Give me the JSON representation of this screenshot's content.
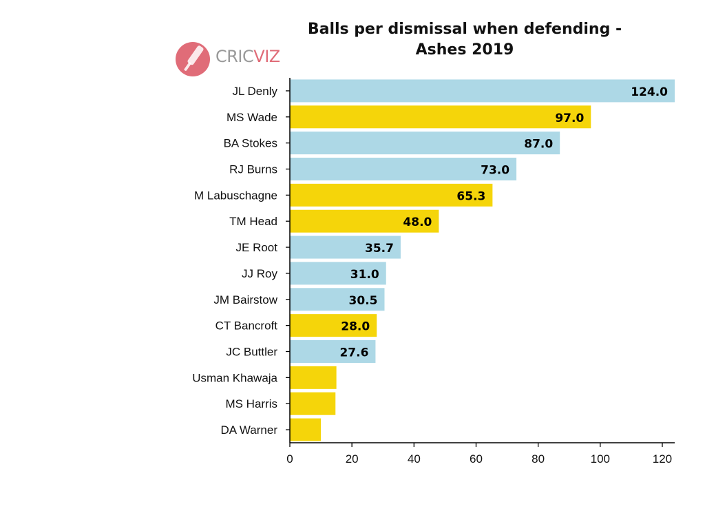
{
  "chart_data": {
    "type": "bar",
    "orientation": "horizontal",
    "title_line1": "Balls per dismissal when defending -",
    "title_line2": "Ashes 2019",
    "logo_text_1": "CRIC",
    "logo_text_2": "VIZ",
    "colors": {
      "England": "#add8e6",
      "Australia": "#f5d50a"
    },
    "categories": [
      "JL Denly",
      "MS Wade",
      "BA Stokes",
      "RJ Burns",
      "M Labuschagne",
      "TM Head",
      "JE Root",
      "JJ Roy",
      "JM Bairstow",
      "CT Bancroft",
      "JC Buttler",
      "Usman Khawaja",
      "MS Harris",
      "DA Warner"
    ],
    "values": [
      124.0,
      97.0,
      87.0,
      73.0,
      65.3,
      48.0,
      35.7,
      31.0,
      30.5,
      28.0,
      27.6,
      15.0,
      14.7,
      10.0
    ],
    "labels": [
      "124.0",
      "97.0",
      "87.0",
      "73.0",
      "65.3",
      "48.0",
      "35.7",
      "31.0",
      "30.5",
      "28.0",
      "27.6",
      "",
      "",
      ""
    ],
    "teams": [
      "England",
      "Australia",
      "England",
      "England",
      "Australia",
      "Australia",
      "England",
      "England",
      "England",
      "Australia",
      "England",
      "Australia",
      "Australia",
      "Australia"
    ],
    "xlim": [
      0,
      124
    ],
    "xticks": [
      0,
      20,
      40,
      60,
      80,
      100,
      120
    ],
    "xlabel": "",
    "ylabel": "",
    "grid": false
  }
}
